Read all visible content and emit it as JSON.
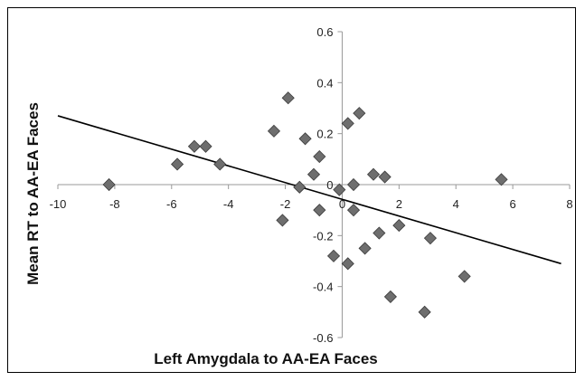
{
  "chart_data": {
    "type": "scatter",
    "title": "",
    "xlabel": "Left Amygdala to AA-EA Faces",
    "ylabel": "Mean RT to AA-EA Faces",
    "xlim": [
      -10,
      8
    ],
    "ylim": [
      -0.6,
      0.6
    ],
    "x_ticks": [
      "-10",
      "-8",
      "-6",
      "-4",
      "-2",
      "0",
      "2",
      "4",
      "6",
      "8"
    ],
    "y_ticks": [
      "0.6",
      "0.4",
      "0.2",
      "0",
      "-0.2",
      "-0.4",
      "-0.6"
    ],
    "grid": false,
    "legend": "none",
    "marker_color": "#6e6e6e",
    "trendline": {
      "x": [
        -10,
        7.7
      ],
      "y": [
        0.27,
        -0.31
      ]
    },
    "points": [
      {
        "x": -8.2,
        "y": 0.0
      },
      {
        "x": -5.8,
        "y": 0.08
      },
      {
        "x": -5.2,
        "y": 0.15
      },
      {
        "x": -4.8,
        "y": 0.15
      },
      {
        "x": -4.3,
        "y": 0.08
      },
      {
        "x": -2.4,
        "y": 0.21
      },
      {
        "x": -2.1,
        "y": -0.14
      },
      {
        "x": -1.9,
        "y": 0.34
      },
      {
        "x": -1.5,
        "y": -0.01
      },
      {
        "x": -1.3,
        "y": 0.18
      },
      {
        "x": -1.0,
        "y": 0.04
      },
      {
        "x": -0.8,
        "y": 0.11
      },
      {
        "x": -0.8,
        "y": -0.1
      },
      {
        "x": -0.3,
        "y": -0.28
      },
      {
        "x": -0.1,
        "y": -0.02
      },
      {
        "x": 0.2,
        "y": 0.24
      },
      {
        "x": 0.2,
        "y": -0.31
      },
      {
        "x": 0.4,
        "y": 0.0
      },
      {
        "x": 0.4,
        "y": -0.1
      },
      {
        "x": 0.6,
        "y": 0.28
      },
      {
        "x": 0.8,
        "y": -0.25
      },
      {
        "x": 1.1,
        "y": 0.04
      },
      {
        "x": 1.3,
        "y": -0.19
      },
      {
        "x": 1.5,
        "y": 0.03
      },
      {
        "x": 1.7,
        "y": -0.44
      },
      {
        "x": 2.0,
        "y": -0.16
      },
      {
        "x": 2.9,
        "y": -0.5
      },
      {
        "x": 3.1,
        "y": -0.21
      },
      {
        "x": 4.3,
        "y": -0.36
      },
      {
        "x": 5.6,
        "y": 0.02
      }
    ]
  }
}
